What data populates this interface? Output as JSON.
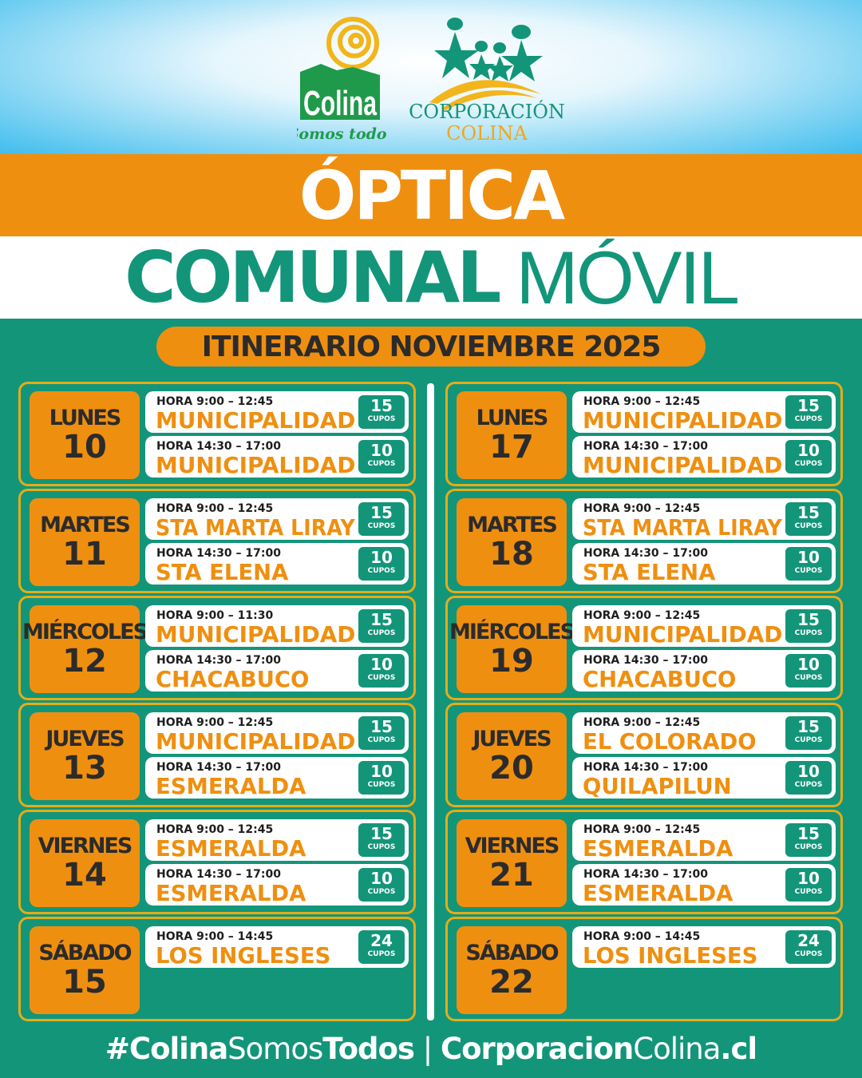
{
  "header": {
    "logo_left": {
      "text": "Colina",
      "tagline": "Somos todos"
    },
    "logo_right": {
      "line1": "CORPORACIÓN",
      "line2": "COLINA"
    },
    "title": "ÓPTICA",
    "subtitle_bold": "COMUNAL",
    "subtitle_light": "MÓVIL",
    "itinerary": "ITINERARIO NOVIEMBRE 2025"
  },
  "colors": {
    "green": "#13957a",
    "orange": "#ef8f10",
    "gold": "#e5ad17"
  },
  "columns": [
    {
      "days": [
        {
          "name": "LUNES",
          "number": "10",
          "slots": [
            {
              "hora": "HORA 9:00 – 12:45",
              "place": "MUNICIPALIDAD",
              "cupos": "15",
              "cupos_label": "CUPOS"
            },
            {
              "hora": "HORA 14:30 – 17:00",
              "place": "MUNICIPALIDAD",
              "cupos": "10",
              "cupos_label": "CUPOS"
            }
          ]
        },
        {
          "name": "MARTES",
          "number": "11",
          "slots": [
            {
              "hora": "HORA 9:00 – 12:45",
              "place": "STA MARTA LIRAY",
              "cupos": "15",
              "cupos_label": "CUPOS"
            },
            {
              "hora": "HORA 14:30 – 17:00",
              "place": "STA ELENA",
              "cupos": "10",
              "cupos_label": "CUPOS"
            }
          ]
        },
        {
          "name": "MIÉRCOLES",
          "number": "12",
          "slots": [
            {
              "hora": "HORA 9:00 – 11:30",
              "place": "MUNICIPALIDAD",
              "cupos": "15",
              "cupos_label": "CUPOS"
            },
            {
              "hora": "HORA 14:30 – 17:00",
              "place": "CHACABUCO",
              "cupos": "10",
              "cupos_label": "CUPOS"
            }
          ]
        },
        {
          "name": "JUEVES",
          "number": "13",
          "slots": [
            {
              "hora": "HORA 9:00 – 12:45",
              "place": "MUNICIPALIDAD",
              "cupos": "15",
              "cupos_label": "CUPOS"
            },
            {
              "hora": "HORA 14:30 – 17:00",
              "place": "ESMERALDA",
              "cupos": "10",
              "cupos_label": "CUPOS"
            }
          ]
        },
        {
          "name": "VIERNES",
          "number": "14",
          "slots": [
            {
              "hora": "HORA 9:00 – 12:45",
              "place": "ESMERALDA",
              "cupos": "15",
              "cupos_label": "CUPOS"
            },
            {
              "hora": "HORA 14:30 – 17:00",
              "place": "ESMERALDA",
              "cupos": "10",
              "cupos_label": "CUPOS"
            }
          ]
        },
        {
          "name": "SÁBADO",
          "number": "15",
          "slots": [
            {
              "hora": "HORA 9:00 – 14:45",
              "place": "LOS INGLESES",
              "cupos": "24",
              "cupos_label": "CUPOS"
            }
          ]
        }
      ]
    },
    {
      "days": [
        {
          "name": "LUNES",
          "number": "17",
          "slots": [
            {
              "hora": "HORA 9:00 – 12:45",
              "place": "MUNICIPALIDAD",
              "cupos": "15",
              "cupos_label": "CUPOS"
            },
            {
              "hora": "HORA 14:30 – 17:00",
              "place": "MUNICIPALIDAD",
              "cupos": "10",
              "cupos_label": "CUPOS"
            }
          ]
        },
        {
          "name": "MARTES",
          "number": "18",
          "slots": [
            {
              "hora": "HORA 9:00 – 12:45",
              "place": "STA MARTA LIRAY",
              "cupos": "15",
              "cupos_label": "CUPOS"
            },
            {
              "hora": "HORA 14:30 – 17:00",
              "place": "STA ELENA",
              "cupos": "10",
              "cupos_label": "CUPOS"
            }
          ]
        },
        {
          "name": "MIÉRCOLES",
          "number": "19",
          "slots": [
            {
              "hora": "HORA 9:00 – 12:45",
              "place": "MUNICIPALIDAD",
              "cupos": "15",
              "cupos_label": "CUPOS"
            },
            {
              "hora": "HORA 14:30 – 17:00",
              "place": "CHACABUCO",
              "cupos": "10",
              "cupos_label": "CUPOS"
            }
          ]
        },
        {
          "name": "JUEVES",
          "number": "20",
          "slots": [
            {
              "hora": "HORA 9:00 – 12:45",
              "place": "EL COLORADO",
              "cupos": "15",
              "cupos_label": "CUPOS"
            },
            {
              "hora": "HORA 14:30 – 17:00",
              "place": "QUILAPILUN",
              "cupos": "10",
              "cupos_label": "CUPOS"
            }
          ]
        },
        {
          "name": "VIERNES",
          "number": "21",
          "slots": [
            {
              "hora": "HORA 9:00 – 12:45",
              "place": "ESMERALDA",
              "cupos": "15",
              "cupos_label": "CUPOS"
            },
            {
              "hora": "HORA 14:30 – 17:00",
              "place": "ESMERALDA",
              "cupos": "10",
              "cupos_label": "CUPOS"
            }
          ]
        },
        {
          "name": "SÁBADO",
          "number": "22",
          "slots": [
            {
              "hora": "HORA 9:00 – 14:45",
              "place": "LOS INGLESES",
              "cupos": "24",
              "cupos_label": "CUPOS"
            }
          ]
        }
      ]
    }
  ],
  "footer": {
    "hash": "#",
    "p1": "Colina",
    "p2": "Somos",
    "p3": "Todos",
    "sep": " | ",
    "s1": "Corporacion",
    "s2": "Colina",
    "s3": ".cl"
  }
}
